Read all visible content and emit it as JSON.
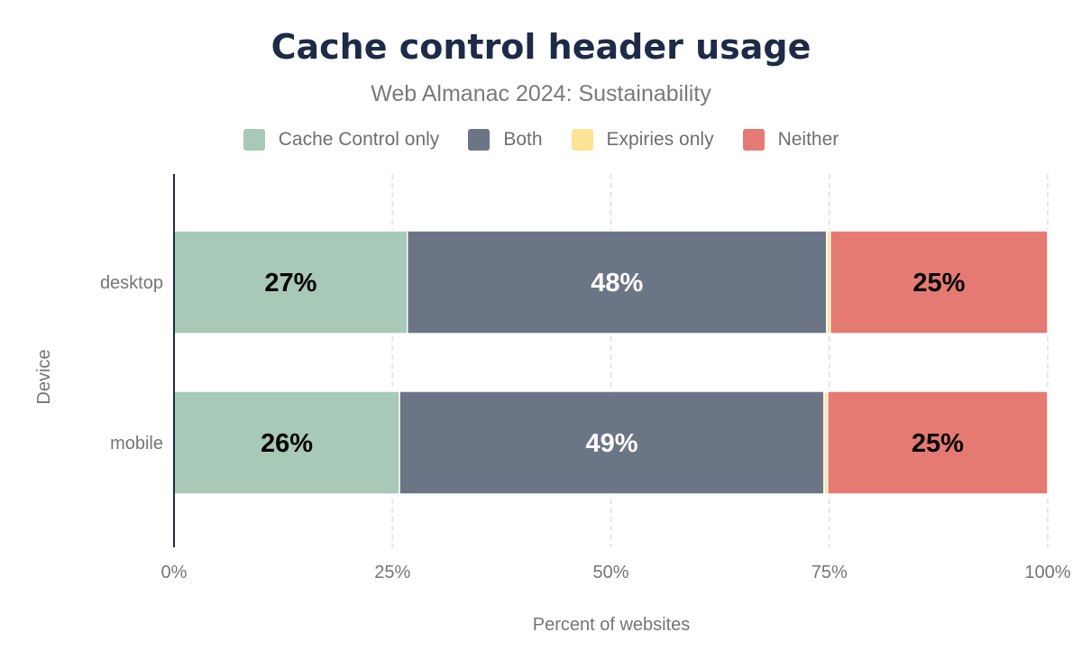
{
  "chart_data": {
    "type": "bar",
    "orientation": "horizontal",
    "stacked": true,
    "title": "Cache control header usage",
    "subtitle": "Web Almanac 2024: Sustainability",
    "xlabel": "Percent of websites",
    "ylabel": "Device",
    "categories": [
      "desktop",
      "mobile"
    ],
    "series": [
      {
        "name": "Cache Control only",
        "color": "#a8c8b8",
        "values": [
          26.7,
          25.8
        ],
        "labels": [
          "27%",
          "26%"
        ],
        "label_color": "#000000"
      },
      {
        "name": "Both",
        "color": "#6b7585",
        "values": [
          48.0,
          48.6
        ],
        "labels": [
          "48%",
          "49%"
        ],
        "label_color": "#ffffff"
      },
      {
        "name": "Expiries only",
        "color": "#fde396",
        "values": [
          0.4,
          0.4
        ],
        "labels": [
          "",
          ""
        ],
        "label_color": "#000000"
      },
      {
        "name": "Neither",
        "color": "#e57a72",
        "values": [
          24.9,
          25.2
        ],
        "labels": [
          "25%",
          "25%"
        ],
        "label_color": "#000000"
      }
    ],
    "xlim": [
      0,
      100
    ],
    "xticks": [
      "0%",
      "25%",
      "50%",
      "75%",
      "100%"
    ],
    "grid": true,
    "legend_position": "top"
  }
}
